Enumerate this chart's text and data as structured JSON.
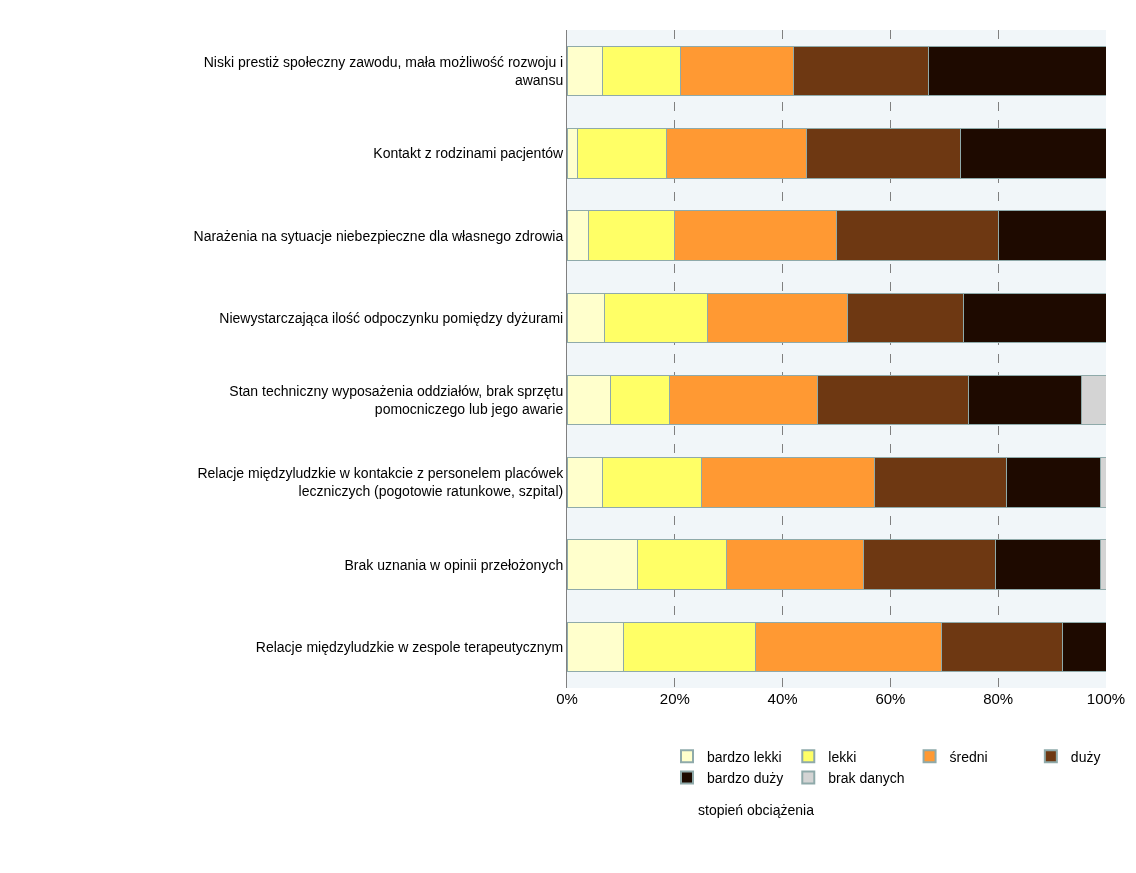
{
  "chart_data": {
    "type": "bar",
    "orientation": "horizontal",
    "stacked": true,
    "categories": [
      "Niski prestiż społeczny zawodu, mała możliwość rozwoju i awansu",
      "Kontakt z rodzinami pacjentów",
      "Narażenia na sytuacje niebezpieczne dla własnego zdrowia",
      "Niewystarczająca ilość odpoczynku pomiędzy dyżurami",
      "Stan techniczny wyposażenia oddziałów, brak sprzętu pomocniczego lub jego awarie",
      "Relacje międzyludzkie w kontakcie z personelem placówek leczniczych (pogotowie ratunkowe, szpital)",
      "Brak uznania w opinii przełożonych",
      "Relacje międzyludzkie w zespole terapeutycznym"
    ],
    "series": [
      {
        "name": "bardzo lekki",
        "color": "#ffffcc",
        "values": [
          6.5,
          2,
          4,
          7,
          8,
          6.5,
          13,
          10.5
        ]
      },
      {
        "name": "lekki",
        "color": "#ffff66",
        "values": [
          14.5,
          16.5,
          16,
          19,
          11,
          18.5,
          16.5,
          24.5
        ]
      },
      {
        "name": "średni",
        "color": "#ff9933",
        "values": [
          21,
          26,
          30,
          26,
          27.5,
          32,
          25.5,
          34.5
        ]
      },
      {
        "name": "duży",
        "color": "#6e3812",
        "values": [
          25,
          28.5,
          30,
          21.5,
          28,
          24.5,
          24.5,
          22.5
        ]
      },
      {
        "name": "bardzo duży",
        "color": "#1e0a00",
        "values": [
          33,
          27,
          20,
          26.5,
          21,
          17.5,
          19.5,
          8
        ]
      },
      {
        "name": "brak danych",
        "color": "#d4d4d4",
        "values": [
          null,
          null,
          null,
          null,
          4.5,
          1,
          1,
          null
        ]
      }
    ],
    "xlim": [
      0,
      100
    ],
    "xticks": [
      {
        "value": 0,
        "label": "0%"
      },
      {
        "value": 20,
        "label": "20%"
      },
      {
        "value": 40,
        "label": "40%"
      },
      {
        "value": 60,
        "label": "60%"
      },
      {
        "value": 80,
        "label": "80%"
      },
      {
        "value": 100,
        "label": "100%"
      }
    ],
    "grid": "x",
    "legend": "bottom",
    "legend_title": "stopień obciążenia"
  }
}
